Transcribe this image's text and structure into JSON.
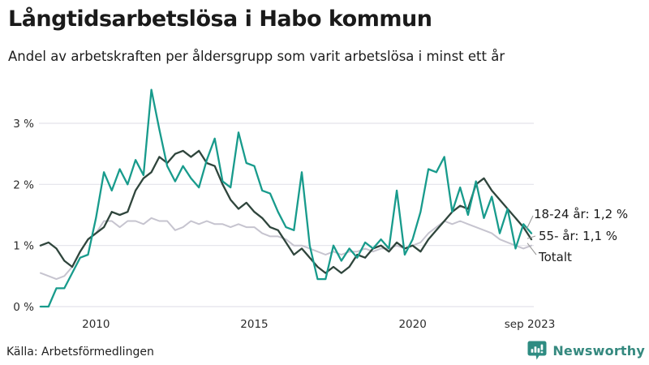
{
  "header": {
    "title": "Långtidsarbetslösa i Habo kommun",
    "subtitle": "Andel av arbetskraften per åldersgrupp som varit arbetslösa i minst ett år"
  },
  "footer": {
    "source": "Källa: Arbetsförmedlingen",
    "brand": "Newsworthy"
  },
  "colors": {
    "youth_line": "#189b8c",
    "senior_line": "#2f453c",
    "total_line": "#c6c4cf",
    "gridline": "#e3e2e9",
    "connector": "#9a9a9a",
    "text": "#1a1a1a",
    "brand_teal": "#35897f"
  },
  "chart_data": {
    "type": "line",
    "title": "Långtidsarbetslösa i Habo kommun",
    "subtitle": "Andel av arbetskraften per åldersgrupp som varit arbetslösa i minst ett år",
    "xlabel": "",
    "ylabel": "",
    "grid": "horizontal",
    "legend_position": "end-of-line-labels",
    "x_range": [
      2008.25,
      2023.75
    ],
    "ylim": [
      0,
      3.6
    ],
    "yticks": [
      {
        "value": 0,
        "label": "0 %"
      },
      {
        "value": 1,
        "label": "1 %"
      },
      {
        "value": 2,
        "label": "2 %"
      },
      {
        "value": 3,
        "label": "3 %"
      }
    ],
    "xticks": [
      {
        "value": 2010,
        "label": "2010"
      },
      {
        "value": 2015,
        "label": "2015"
      },
      {
        "value": 2020,
        "label": "2020"
      },
      {
        "value": 2023.7,
        "label": "sep 2023"
      }
    ],
    "x": [
      2008.25,
      2008.5,
      2008.75,
      2009.0,
      2009.25,
      2009.5,
      2009.75,
      2010.0,
      2010.25,
      2010.5,
      2010.75,
      2011.0,
      2011.25,
      2011.5,
      2011.75,
      2012.0,
      2012.25,
      2012.5,
      2012.75,
      2013.0,
      2013.25,
      2013.5,
      2013.75,
      2014.0,
      2014.25,
      2014.5,
      2014.75,
      2015.0,
      2015.25,
      2015.5,
      2015.75,
      2016.0,
      2016.25,
      2016.5,
      2016.75,
      2017.0,
      2017.25,
      2017.5,
      2017.75,
      2018.0,
      2018.25,
      2018.5,
      2018.75,
      2019.0,
      2019.25,
      2019.5,
      2019.75,
      2020.0,
      2020.25,
      2020.5,
      2020.75,
      2021.0,
      2021.25,
      2021.5,
      2021.75,
      2022.0,
      2022.25,
      2022.5,
      2022.75,
      2023.0,
      2023.25,
      2023.5,
      2023.75
    ],
    "series": [
      {
        "name": "18-24 år",
        "color": "#189b8c",
        "last_value_label": "1,2 %",
        "values": [
          0.0,
          0.0,
          0.3,
          0.3,
          0.55,
          0.8,
          0.85,
          1.45,
          2.2,
          1.9,
          2.25,
          2.0,
          2.4,
          2.15,
          3.55,
          2.9,
          2.3,
          2.05,
          2.3,
          2.1,
          1.95,
          2.4,
          2.75,
          2.05,
          1.95,
          2.85,
          2.35,
          2.3,
          1.9,
          1.85,
          1.55,
          1.3,
          1.25,
          2.2,
          1.0,
          0.45,
          0.45,
          1.0,
          0.75,
          0.95,
          0.8,
          1.05,
          0.95,
          1.1,
          0.95,
          1.9,
          0.85,
          1.1,
          1.55,
          2.25,
          2.2,
          2.45,
          1.55,
          1.95,
          1.5,
          2.05,
          1.45,
          1.8,
          1.2,
          1.6,
          0.95,
          1.35,
          1.2
        ]
      },
      {
        "name": "55- år",
        "color": "#2f453c",
        "last_value_label": "1,1 %",
        "values": [
          1.0,
          1.05,
          0.95,
          0.75,
          0.65,
          0.9,
          1.1,
          1.2,
          1.3,
          1.55,
          1.5,
          1.55,
          1.9,
          2.1,
          2.2,
          2.45,
          2.35,
          2.5,
          2.55,
          2.45,
          2.55,
          2.35,
          2.3,
          2.0,
          1.75,
          1.6,
          1.7,
          1.55,
          1.45,
          1.3,
          1.25,
          1.05,
          0.85,
          0.95,
          0.8,
          0.65,
          0.55,
          0.65,
          0.55,
          0.65,
          0.85,
          0.8,
          0.95,
          1.0,
          0.9,
          1.05,
          0.95,
          1.0,
          0.9,
          1.1,
          1.25,
          1.4,
          1.55,
          1.65,
          1.6,
          2.0,
          2.1,
          1.9,
          1.75,
          1.6,
          1.45,
          1.3,
          1.1
        ]
      },
      {
        "name": "Totalt",
        "color": "#c6c4cf",
        "last_value_label": "",
        "values": [
          0.55,
          0.5,
          0.45,
          0.5,
          0.65,
          0.9,
          1.1,
          1.2,
          1.4,
          1.4,
          1.3,
          1.4,
          1.4,
          1.35,
          1.45,
          1.4,
          1.4,
          1.25,
          1.3,
          1.4,
          1.35,
          1.4,
          1.35,
          1.35,
          1.3,
          1.35,
          1.3,
          1.3,
          1.2,
          1.15,
          1.15,
          1.1,
          1.0,
          1.0,
          0.95,
          0.9,
          0.85,
          0.9,
          0.85,
          0.9,
          0.9,
          0.95,
          0.9,
          0.95,
          0.95,
          1.0,
          0.95,
          1.0,
          1.05,
          1.2,
          1.3,
          1.4,
          1.35,
          1.4,
          1.35,
          1.3,
          1.25,
          1.2,
          1.1,
          1.05,
          1.0,
          0.95,
          1.0
        ]
      }
    ],
    "annotations": [
      {
        "label": "18-24 år: 1,2 %",
        "series": "18-24 år",
        "value": "1,2 %"
      },
      {
        "label": "55- år: 1,1 %",
        "series": "55- år",
        "value": "1,1 %"
      },
      {
        "label": "Totalt",
        "series": "Totalt",
        "value": ""
      }
    ]
  }
}
